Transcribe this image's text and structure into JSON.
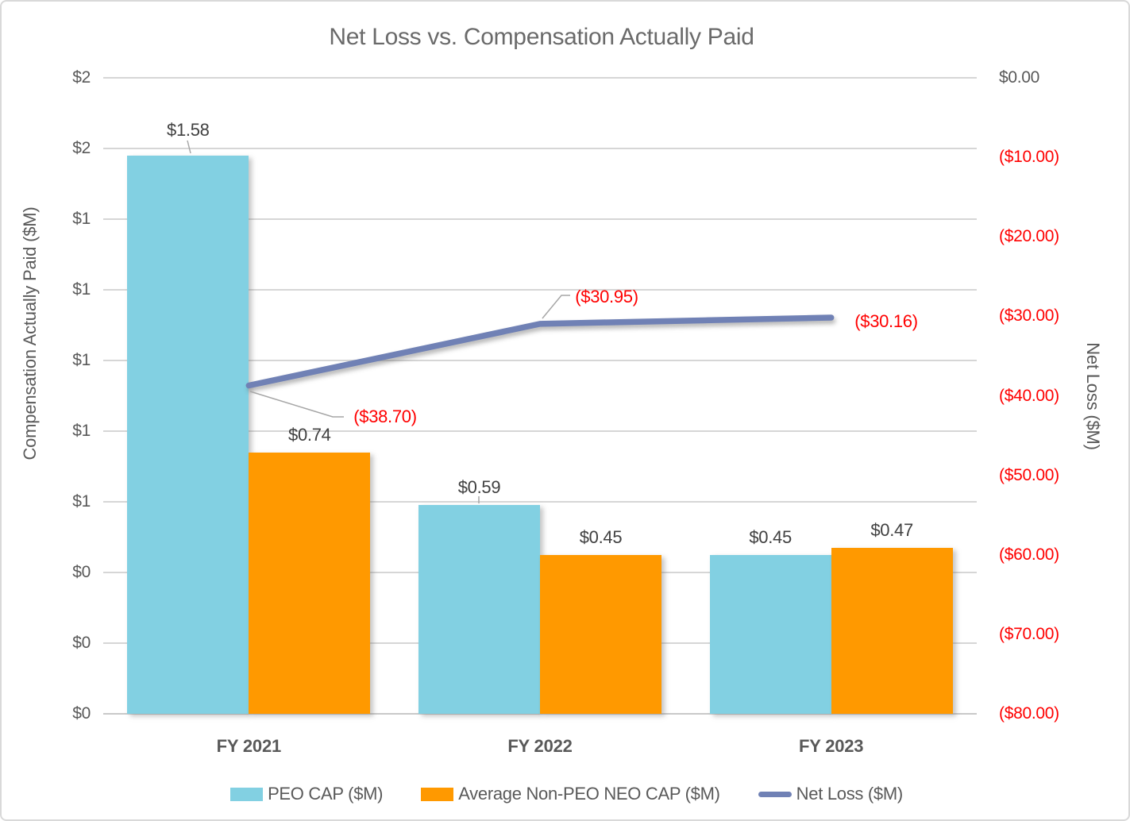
{
  "title": "Net Loss vs. Compensation Actually Paid",
  "chart_data": {
    "type": "combo-bar-line",
    "categories": [
      "FY 2021",
      "FY 2022",
      "FY 2023"
    ],
    "series": [
      {
        "name": "PEO CAP ($M)",
        "type": "bar",
        "color": "#82D0E2",
        "values": [
          1.58,
          0.59,
          0.45
        ],
        "data_labels": [
          "$1.58",
          "$0.59",
          "$0.45"
        ]
      },
      {
        "name": "Average Non-PEO NEO CAP ($M)",
        "type": "bar",
        "color": "#FF9900",
        "values": [
          0.74,
          0.45,
          0.47
        ],
        "data_labels": [
          "$0.74",
          "$0.45",
          "$0.47"
        ]
      },
      {
        "name": "Net Loss ($M)",
        "type": "line",
        "color": "#7081B5",
        "values": [
          -38.7,
          -30.95,
          -30.16
        ],
        "data_labels": [
          "($38.70)",
          "($30.95)",
          "($30.16)"
        ],
        "label_color": "#FF0000"
      }
    ],
    "left_axis": {
      "title": "Compensation Actually Paid ($M)",
      "tick_labels": [
        "$2",
        "$2",
        "$1",
        "$1",
        "$1",
        "$1",
        "$1",
        "$0",
        "$0",
        "$0"
      ],
      "min": 0,
      "max": 1.8
    },
    "right_axis": {
      "title": "Net Loss ($M)",
      "tick_labels": [
        "$0.00",
        "($10.00)",
        "($20.00)",
        "($30.00)",
        "($40.00)",
        "($50.00)",
        "($60.00)",
        "($70.00)",
        "($80.00)"
      ],
      "min": -80,
      "max": 0,
      "negative_color": "#FF0000"
    },
    "legend_position": "bottom",
    "grid": true,
    "text_color": "#595959"
  }
}
